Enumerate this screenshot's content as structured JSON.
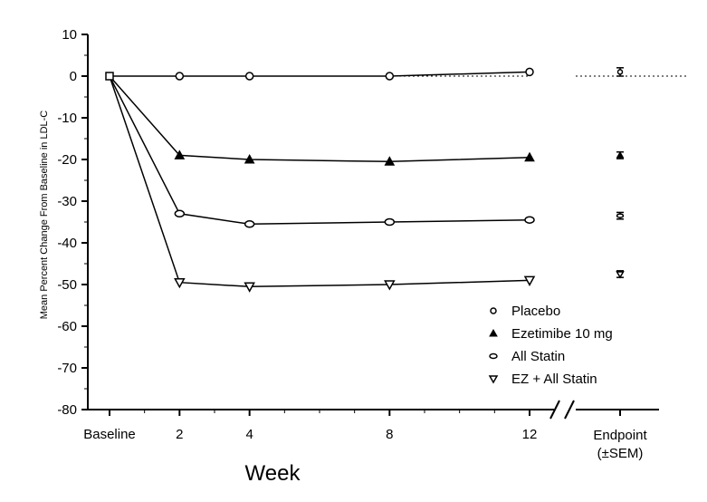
{
  "chart_data": {
    "type": "line",
    "title": "",
    "ylabel": "Mean Percent Change From Baseline in LDL-C",
    "xlabel": "Week",
    "ylim": [
      -80,
      10
    ],
    "yticks": [
      10,
      0,
      -10,
      -20,
      -30,
      -40,
      -50,
      -60,
      -70,
      -80
    ],
    "x": [
      0,
      2,
      4,
      8,
      12
    ],
    "xtick_labels": [
      "Baseline",
      "2",
      "4",
      "8",
      "12"
    ],
    "endpoint_label_line1": "Endpoint",
    "endpoint_label_line2": "(±SEM)",
    "reference_line": 0,
    "series": [
      {
        "name": "Placebo",
        "marker": "circle",
        "values": [
          0,
          0,
          0,
          0,
          1
        ],
        "endpoint": 1,
        "sem": 1
      },
      {
        "name": "Ezetimibe 10 mg",
        "marker": "triangle-up",
        "values": [
          0,
          -19,
          -20,
          -20.5,
          -19.5
        ],
        "endpoint": -19,
        "sem": 0.8
      },
      {
        "name": "All Statin",
        "marker": "diamond",
        "values": [
          0,
          -33,
          -35.5,
          -35,
          -34.5
        ],
        "endpoint": -33.5,
        "sem": 0.8
      },
      {
        "name": "EZ + All Statin",
        "marker": "triangle-down",
        "values": [
          0,
          -49.5,
          -50.5,
          -50,
          -49
        ],
        "endpoint": -47.5,
        "sem": 0.8
      }
    ],
    "legend_position": "bottom-right"
  }
}
